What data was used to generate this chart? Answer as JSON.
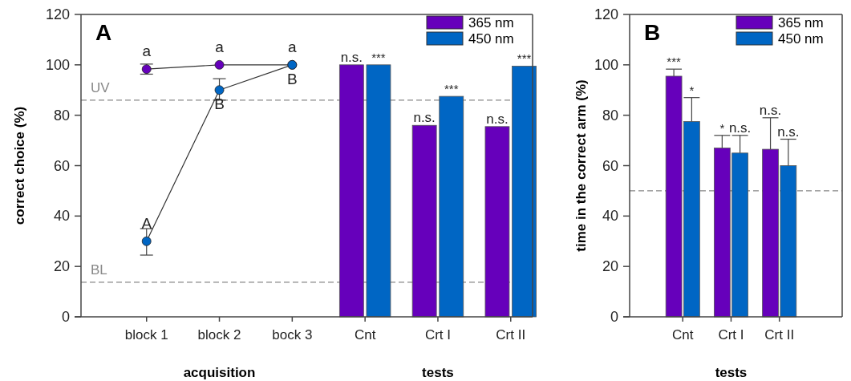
{
  "chart_data": [
    {
      "type": "bar",
      "title": "A",
      "xlabel": "acquisition",
      "ylabel": "correct choice (%)",
      "categories": [
        "block 1",
        "block 2",
        "bock 3",
        "Cnt",
        "Crt I",
        "Crt II"
      ],
      "ylim": [
        0,
        120
      ],
      "yticks": [
        0,
        20,
        40,
        60,
        80,
        100,
        120
      ],
      "grid": false,
      "legend": "top right",
      "marker": "circle",
      "series": [
        {
          "type": "line",
          "color": "#6600bb",
          "values": [
            98.3,
            100,
            100,
            null,
            null,
            null
          ],
          "errors": [
            [
              96.3,
              100.3
            ],
            null,
            null,
            null,
            null,
            null
          ],
          "value_labels": [
            "a",
            "a",
            "a",
            null,
            null,
            null
          ]
        },
        {
          "type": "line",
          "color": "#0066c4",
          "values": [
            30,
            90,
            100,
            null,
            null,
            null
          ],
          "errors": [
            [
              24.5,
              35
            ],
            [
              86,
              94.5
            ],
            null,
            null,
            null,
            null
          ],
          "value_labels": [
            "A",
            "B",
            "B",
            null,
            null,
            null
          ]
        },
        {
          "name": "365 nm",
          "color": "#6600bb",
          "values": [
            null,
            null,
            null,
            100,
            76,
            75.5
          ],
          "value_labels": [
            null,
            null,
            null,
            "n.s.",
            "n.s.",
            "n.s."
          ]
        },
        {
          "name": "450 nm",
          "color": "#0066c4",
          "values": [
            null,
            null,
            null,
            100,
            87.5,
            99.5
          ],
          "value_labels": [
            null,
            null,
            null,
            "***",
            "***",
            "***"
          ]
        }
      ],
      "ref_lines": [
        {
          "axis": "y",
          "value": 86,
          "label": "UV",
          "color": "#888888",
          "line_style": "dashed"
        },
        {
          "axis": "y",
          "value": 13.7,
          "label": "BL",
          "color": "#888888",
          "line_style": "dashed"
        }
      ],
      "annotations": [
        "tests"
      ]
    },
    {
      "type": "bar",
      "title": "B",
      "xlabel": "tests",
      "ylabel": "time in the correct arm (%)",
      "categories": [
        "Cnt",
        "Crt I",
        "Crt II"
      ],
      "ylim": [
        0,
        120
      ],
      "yticks": [
        0,
        20,
        40,
        60,
        80,
        100,
        120
      ],
      "grid": false,
      "legend": "top right",
      "series": [
        {
          "name": "365 nm",
          "color": "#6600bb",
          "values": [
            95.5,
            67,
            66.5
          ],
          "errors": [
            [
              95.5,
              98.3
            ],
            [
              67,
              72
            ],
            [
              66.5,
              79
            ]
          ],
          "value_labels": [
            "***",
            "*",
            "n.s."
          ]
        },
        {
          "name": "450 nm",
          "color": "#0066c4",
          "values": [
            77.5,
            65,
            60
          ],
          "errors": [
            [
              77.5,
              87
            ],
            [
              65,
              72
            ],
            [
              60,
              70.5
            ]
          ],
          "value_labels": [
            "*",
            "n.s.",
            "n.s."
          ]
        }
      ],
      "ref_lines": [
        {
          "axis": "y",
          "value": 50,
          "line_style": "dashed",
          "color": "#888888"
        }
      ]
    }
  ]
}
